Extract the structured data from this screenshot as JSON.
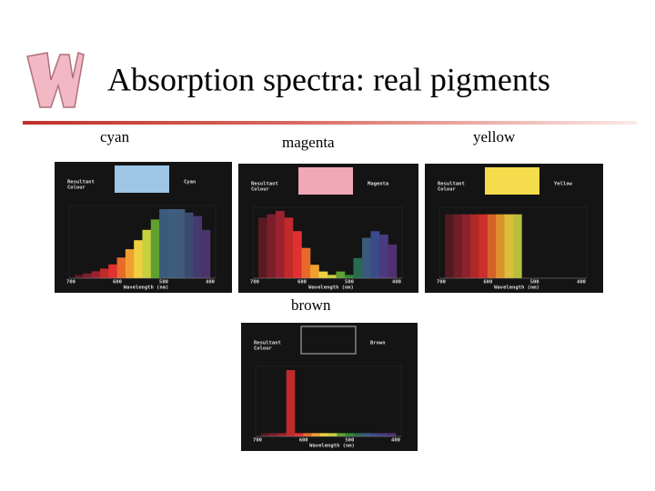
{
  "header": {
    "title": "Absorption spectra: real pigments"
  },
  "panels": [
    {
      "caption": "cyan",
      "swatch_label": [
        "Resultant",
        "Colour"
      ],
      "color_name": "Cyan",
      "axis_ticks": [
        "700",
        "600",
        "500",
        "400"
      ],
      "axis_label": "Wavelength (nm)"
    },
    {
      "caption": "magenta",
      "swatch_label": [
        "Resultant",
        "Colour"
      ],
      "color_name": "Magenta",
      "axis_ticks": [
        "700",
        "600",
        "500",
        "400"
      ],
      "axis_label": "Wavelength (nm)"
    },
    {
      "caption": "yellow",
      "swatch_label": [
        "Resultant",
        "Colour"
      ],
      "color_name": "Yellow",
      "axis_ticks": [
        "700",
        "600",
        "500",
        "400"
      ],
      "axis_label": "Wavelength (nm)"
    },
    {
      "caption": "brown",
      "swatch_label": [
        "Resultant",
        "Colour"
      ],
      "color_name": "Brown",
      "axis_ticks": [
        "700",
        "600",
        "500",
        "400"
      ],
      "axis_label": "Wavelength (nm)"
    }
  ]
}
